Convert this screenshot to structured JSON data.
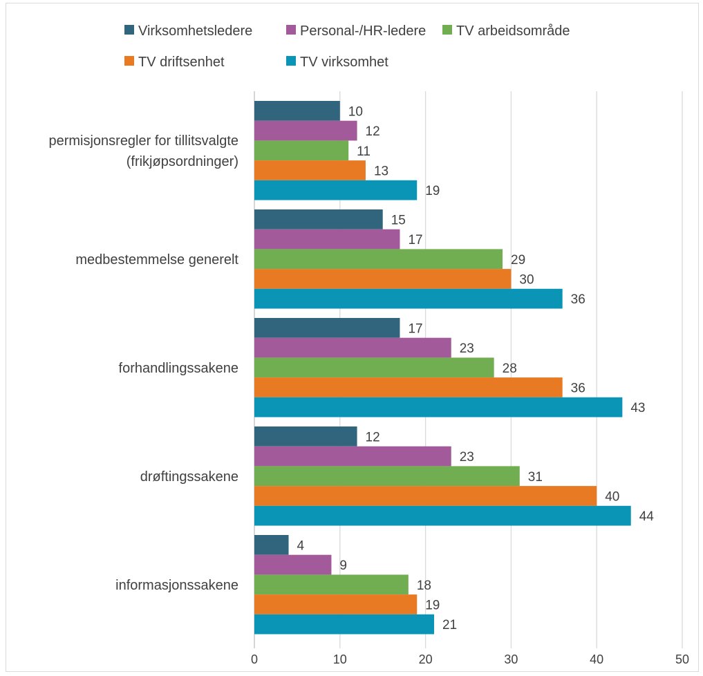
{
  "chart_data": {
    "type": "bar",
    "orientation": "horizontal",
    "title": "",
    "xlabel": "",
    "ylabel": "",
    "xlim": [
      0,
      50
    ],
    "x_ticks": [
      0,
      10,
      20,
      30,
      40,
      50
    ],
    "grid": true,
    "legend_position": "top",
    "categories": [
      [
        "permisjonsregler for tillitsvalgte",
        "(frikjøpsordninger)"
      ],
      [
        "medbestemmelse generelt"
      ],
      [
        "forhandlingssakene"
      ],
      [
        "drøftingssakene"
      ],
      [
        "informasjonssakene"
      ]
    ],
    "series": [
      {
        "name": "Virksomhetsledere",
        "color": "#31657e",
        "values": [
          10,
          15,
          17,
          12,
          4
        ]
      },
      {
        "name": "Personal-/HR-ledere",
        "color": "#a25a9a",
        "values": [
          12,
          17,
          23,
          23,
          9
        ]
      },
      {
        "name": "TV arbeidsområde",
        "color": "#71ad51",
        "values": [
          11,
          29,
          28,
          31,
          18
        ]
      },
      {
        "name": "TV driftsenhet",
        "color": "#e87a23",
        "values": [
          13,
          30,
          36,
          40,
          19
        ]
      },
      {
        "name": "TV virksomhet",
        "color": "#0a94b5",
        "values": [
          19,
          36,
          43,
          44,
          21
        ]
      }
    ]
  }
}
